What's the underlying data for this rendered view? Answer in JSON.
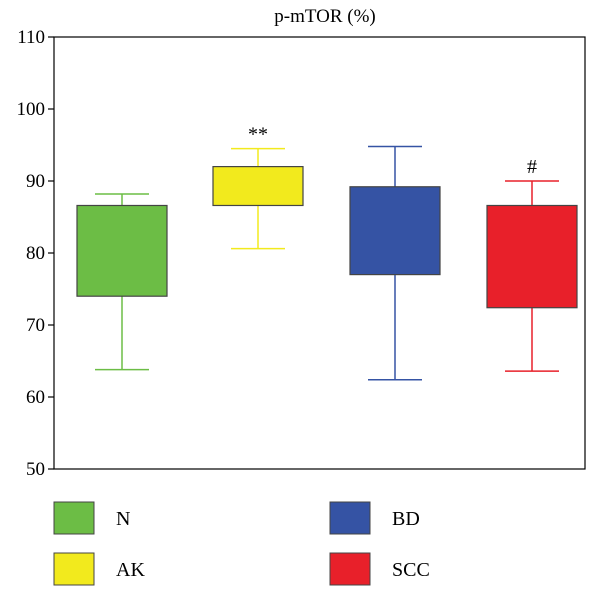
{
  "chart_data": {
    "type": "box",
    "title": "p-mTOR (%)",
    "xlabel": "",
    "ylabel": "",
    "ylim": [
      50,
      110
    ],
    "yticks": [
      50,
      60,
      70,
      80,
      90,
      100,
      110
    ],
    "grid": false,
    "legend_placement": "bottom",
    "series": [
      {
        "name": "N",
        "color": "#6cbd45",
        "min": 63.8,
        "q1": 74.0,
        "q3": 86.6,
        "max": 88.2,
        "annotation": ""
      },
      {
        "name": "AK",
        "color": "#f2ea1d",
        "min": 80.6,
        "q1": 86.6,
        "q3": 92.0,
        "max": 94.5,
        "annotation": "**"
      },
      {
        "name": "BD",
        "color": "#3553a4",
        "min": 62.4,
        "q1": 77.0,
        "q3": 89.2,
        "max": 94.8,
        "annotation": ""
      },
      {
        "name": "SCC",
        "color": "#e8202a",
        "min": 63.6,
        "q1": 72.4,
        "q3": 86.6,
        "max": 90.0,
        "annotation": "#"
      }
    ]
  }
}
